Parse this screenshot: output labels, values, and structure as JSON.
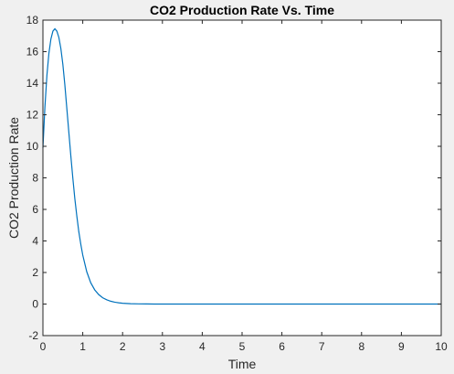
{
  "chart_data": {
    "type": "line",
    "title": "CO2 Production Rate Vs. Time",
    "xlabel": "Time",
    "ylabel": "CO2 Production Rate",
    "xlim": [
      0,
      10
    ],
    "ylim": [
      -2,
      18
    ],
    "xticks": [
      "0",
      "1",
      "2",
      "3",
      "4",
      "5",
      "6",
      "7",
      "8",
      "9",
      "10"
    ],
    "yticks": [
      "-2",
      "0",
      "2",
      "4",
      "6",
      "8",
      "10",
      "12",
      "14",
      "16",
      "18"
    ],
    "grid": false,
    "legend": "none",
    "line_color": "#0072bd",
    "axes_background": "#ffffff",
    "series": [
      {
        "x": [
          0,
          0.05,
          0.1,
          0.15,
          0.2,
          0.25,
          0.3,
          0.35,
          0.4,
          0.45,
          0.5,
          0.55,
          0.6,
          0.65,
          0.7,
          0.75,
          0.8,
          0.85,
          0.9,
          0.95,
          1.0,
          1.1,
          1.2,
          1.3,
          1.4,
          1.5,
          1.6,
          1.7,
          1.8,
          1.9,
          2.0,
          2.2,
          2.4,
          2.6,
          2.8,
          3.0,
          3.5,
          4.0,
          5.0,
          6.0,
          7.0,
          8.0,
          9.0,
          10.0
        ],
        "y": [
          9.9,
          12.5,
          14.5,
          15.9,
          16.8,
          17.3,
          17.45,
          17.3,
          16.9,
          16.2,
          15.2,
          13.9,
          12.4,
          10.9,
          9.4,
          8.0,
          6.7,
          5.6,
          4.6,
          3.8,
          3.1,
          2.05,
          1.35,
          0.9,
          0.6,
          0.4,
          0.27,
          0.18,
          0.12,
          0.08,
          0.05,
          0.02,
          0.01,
          0.005,
          0.002,
          0.001,
          0,
          0,
          0,
          0,
          0,
          0,
          0,
          0
        ]
      }
    ]
  }
}
